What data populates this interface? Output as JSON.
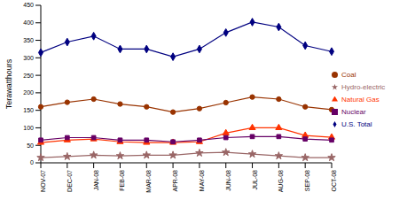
{
  "chart_data": {
    "type": "line",
    "y_label": "Terawatthours",
    "categories": [
      "NOV-07",
      "DEC-07",
      "JAN-08",
      "FEB-08",
      "MAR-08",
      "APR-08",
      "MAY-08",
      "JUN-08",
      "JUL-08",
      "AUG-08",
      "SEP-08",
      "OCT-08"
    ],
    "series": [
      {
        "name": "U.S. Total",
        "color": "#000080",
        "marker": "diamond",
        "values": [
          315,
          345,
          362,
          325,
          325,
          303,
          325,
          372,
          402,
          388,
          335,
          318
        ]
      },
      {
        "name": "Coal",
        "color": "#993300",
        "marker": "circle",
        "values": [
          160,
          173,
          182,
          168,
          160,
          145,
          155,
          172,
          188,
          182,
          160,
          152
        ]
      },
      {
        "name": "Natural Gas",
        "color": "#ff3300",
        "marker": "triangle",
        "values": [
          58,
          65,
          68,
          60,
          58,
          58,
          60,
          85,
          100,
          100,
          78,
          73
        ]
      },
      {
        "name": "Nuclear",
        "color": "#660066",
        "marker": "square",
        "values": [
          65,
          72,
          72,
          65,
          65,
          60,
          65,
          72,
          75,
          75,
          68,
          65
        ]
      },
      {
        "name": "Hydro-electric",
        "color": "#996666",
        "marker": "star",
        "values": [
          15,
          18,
          22,
          20,
          22,
          22,
          28,
          30,
          25,
          20,
          15,
          15
        ]
      }
    ],
    "ylim": [
      0,
      450
    ],
    "yticks": [
      0,
      50,
      100,
      150,
      200,
      250,
      300,
      350,
      400,
      450
    ],
    "grid": false,
    "legend": "right"
  }
}
